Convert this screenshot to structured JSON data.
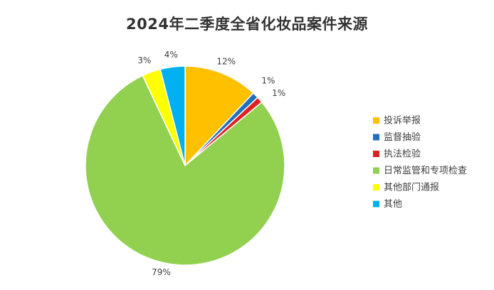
{
  "chart_data": {
    "type": "pie",
    "title": "2024年二季度全省化妆品案件来源",
    "categories": [
      "投诉举报",
      "监督抽验",
      "执法检验",
      "日常监管和专项检查",
      "其他部门通报",
      "其他"
    ],
    "values": [
      12,
      1,
      1,
      79,
      3,
      4
    ],
    "value_labels": [
      "12%",
      "1%",
      "1%",
      "79%",
      "3%",
      "4%"
    ],
    "colors": [
      "#FFC000",
      "#1F6FBF",
      "#E02020",
      "#92D050",
      "#FFFF00",
      "#00B0F0"
    ],
    "legend_placement": "right"
  }
}
